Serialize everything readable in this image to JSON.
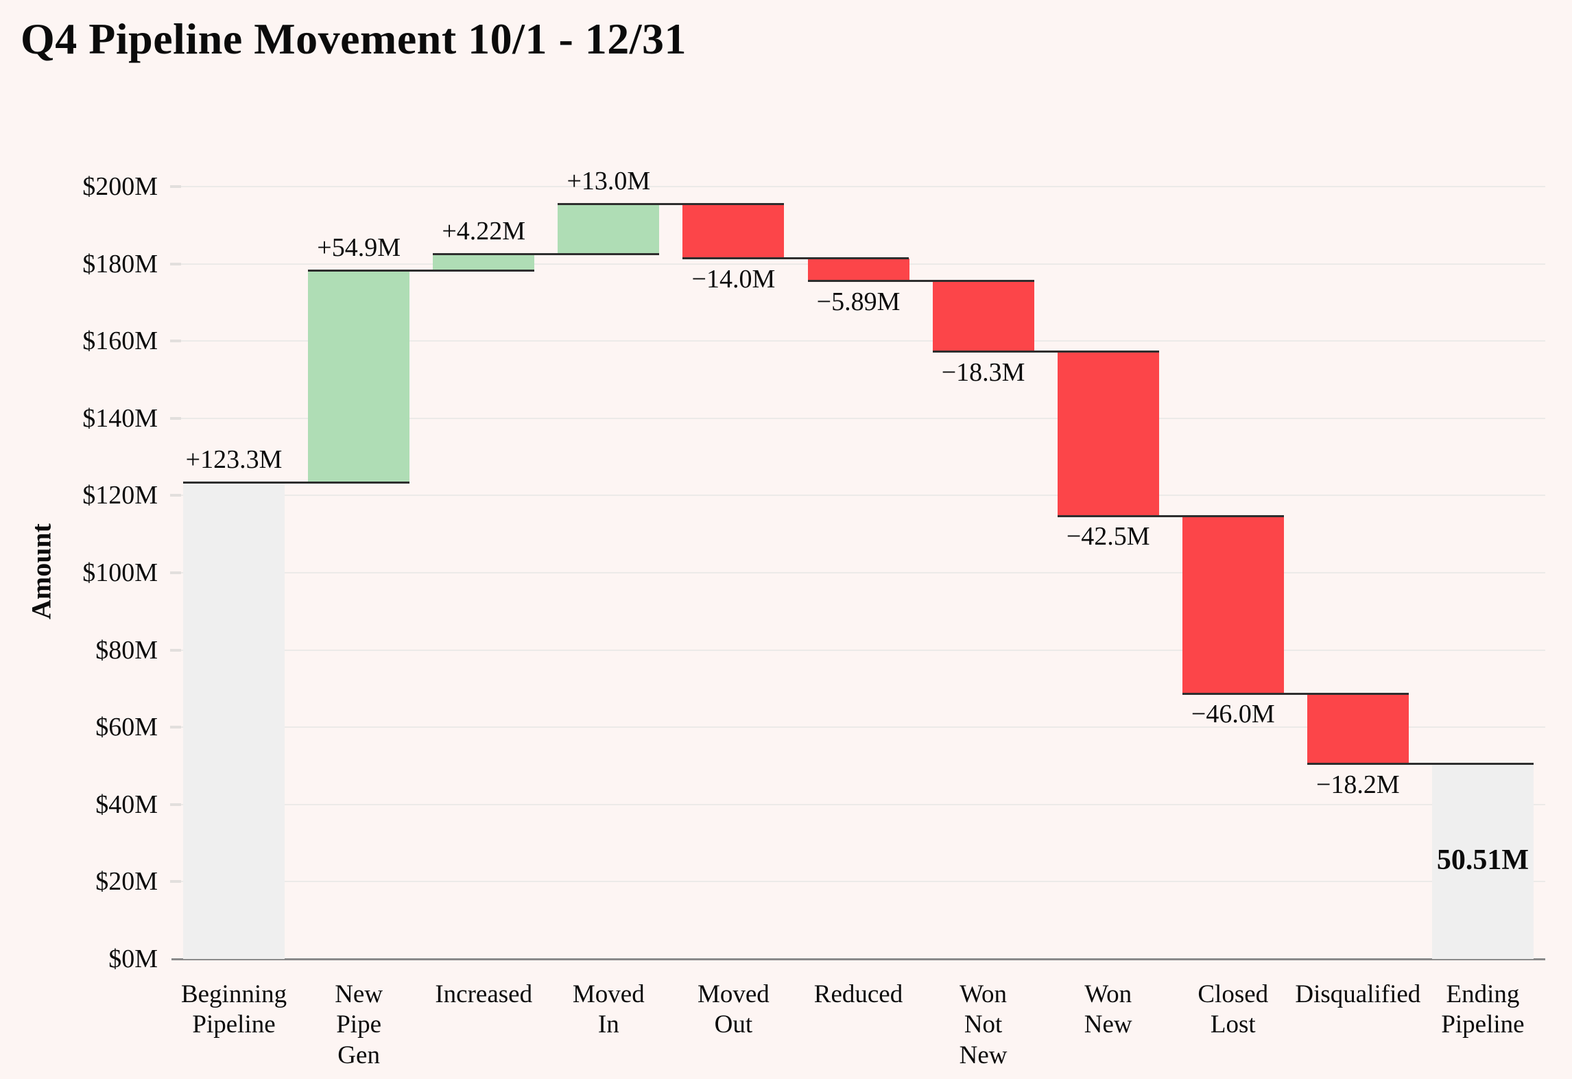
{
  "page": {
    "background": "#FDF5F3"
  },
  "chart_data": {
    "type": "bar",
    "subtype": "waterfall",
    "title": "Q4 Pipeline Movement 10/1 - 12/31",
    "xlabel": "",
    "ylabel": "Amount",
    "ylim": [
      0,
      200
    ],
    "ytick_step": 20,
    "ytick_labels": [
      "$0M",
      "$20M",
      "$40M",
      "$60M",
      "$80M",
      "$100M",
      "$120M",
      "$140M",
      "$160M",
      "$180M",
      "$200M"
    ],
    "grid": true,
    "legend": "none",
    "colors": {
      "increase": "#AFDDB5",
      "decrease": "#FC4549",
      "total": "#EFEFEF",
      "connector": "#2E2E2E",
      "gridline": "#ECEAE8",
      "axis_line": "#8A8A8A",
      "background": "#FDF5F3",
      "text": "#0B0B0B"
    },
    "steps": [
      {
        "kind": "total",
        "category_lines": [
          "Beginning",
          "Pipeline"
        ],
        "value": 123.3,
        "label": "+123.3M"
      },
      {
        "kind": "delta",
        "category_lines": [
          "New",
          "Pipe",
          "Gen"
        ],
        "value": 54.9,
        "label": "+54.9M"
      },
      {
        "kind": "delta",
        "category_lines": [
          "Increased"
        ],
        "value": 4.22,
        "label": "+4.22M"
      },
      {
        "kind": "delta",
        "category_lines": [
          "Moved",
          "In"
        ],
        "value": 13.0,
        "label": "+13.0M"
      },
      {
        "kind": "delta",
        "category_lines": [
          "Moved",
          "Out"
        ],
        "value": -14.0,
        "label": "−14.0M"
      },
      {
        "kind": "delta",
        "category_lines": [
          "Reduced"
        ],
        "value": -5.89,
        "label": "−5.89M"
      },
      {
        "kind": "delta",
        "category_lines": [
          "Won",
          "Not",
          "New"
        ],
        "value": -18.3,
        "label": "−18.3M"
      },
      {
        "kind": "delta",
        "category_lines": [
          "Won",
          "New"
        ],
        "value": -42.5,
        "label": "−42.5M"
      },
      {
        "kind": "delta",
        "category_lines": [
          "Closed",
          "Lost"
        ],
        "value": -46.0,
        "label": "−46.0M"
      },
      {
        "kind": "delta",
        "category_lines": [
          "Disqualified"
        ],
        "value": -18.2,
        "label": "−18.2M"
      },
      {
        "kind": "end",
        "category_lines": [
          "Ending",
          "Pipeline"
        ],
        "value": 50.51,
        "label": "50.51M"
      }
    ]
  }
}
